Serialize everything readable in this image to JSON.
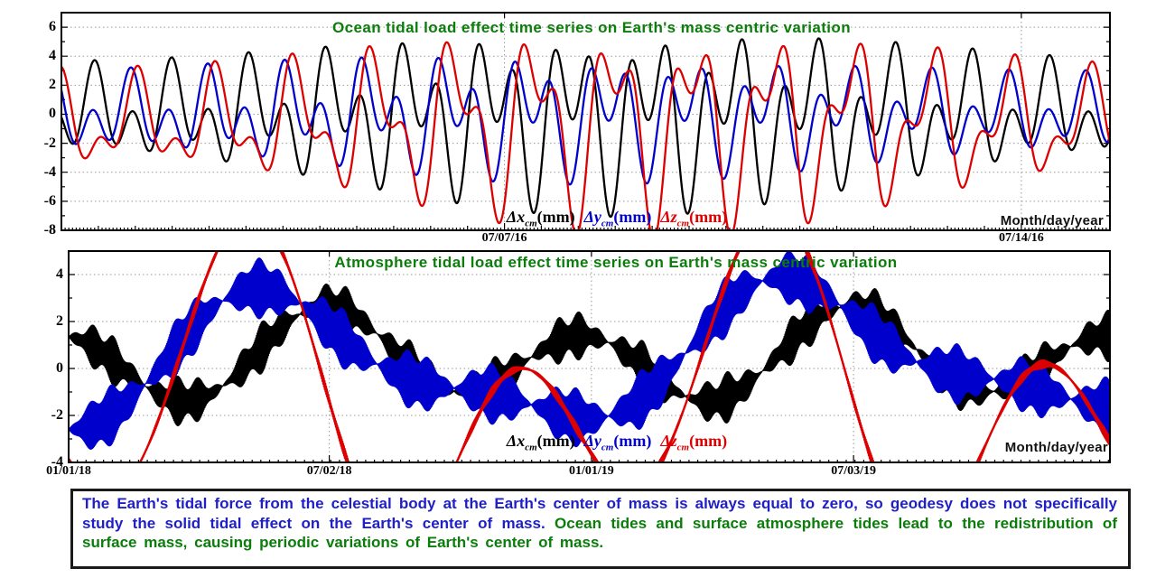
{
  "page": {
    "background": "#ffffff",
    "note_box": {
      "text_blue": "The Earth's tidal force from the celestial body at the Earth's center of mass is always equal to zero, so geodesy does not specifically study the solid tidal effect on the Earth's center of mass.",
      "text_green": "Ocean tides and surface atmosphere tides lead to the redistribution of surface mass, causing periodic variations of Earth's center of mass.",
      "blue": "#1f1fc8",
      "green": "#0a7d0a"
    }
  },
  "colors": {
    "title_green": "#0a7d0a",
    "axis_black": "#000000",
    "grid_gray": "#999999",
    "series_x": "#000000",
    "series_y": "#0000cc",
    "series_z": "#dd0000"
  },
  "chart_data": [
    {
      "type": "line",
      "id": "ocean",
      "title": "Ocean tidal load effect time series on Earth's mass centric variation",
      "title_color": "#0a7d0a",
      "xlabel_note": "Month/day/year",
      "x_unit": "days since 07/01/16",
      "xlim": [
        0,
        14.2
      ],
      "ylim": [
        -8,
        7
      ],
      "y_ticks": [
        6,
        4,
        2,
        0,
        -2,
        -4,
        -6,
        -8
      ],
      "y_minor_step": 1,
      "x_ticks": [
        {
          "label": "07/07/16",
          "day": 6
        },
        {
          "label": "07/14/16",
          "day": 13
        }
      ],
      "x_minor_step": 0.05,
      "x_mid_step": 0.5,
      "grid": "dotted",
      "sample_step": 0.01,
      "legend": [
        {
          "var": "Δx",
          "sub": "cm",
          "unit": "(mm)",
          "color": "#000000"
        },
        {
          "var": "Δy",
          "sub": "cm",
          "unit": "(mm)",
          "color": "#0000cc"
        },
        {
          "var": "Δz",
          "sub": "cm",
          "unit": "(mm)",
          "color": "#dd0000"
        }
      ],
      "series": [
        {
          "name": "dx_cm",
          "color": "#000000",
          "width": 2.3,
          "offset": 0,
          "envelope": {
            "base": 1.35,
            "amp": 0.42,
            "period": 14.77,
            "t0": 7.6
          },
          "components": [
            {
              "amp": 2.1,
              "period": 0.5175,
              "phase": 2.39
            },
            {
              "amp": 1.9,
              "period": 1.0758,
              "phase": -1.06
            }
          ]
        },
        {
          "name": "dy_cm",
          "color": "#0000cc",
          "width": 2.3,
          "offset": 0,
          "envelope": {
            "base": 1.2,
            "amp": 0.28,
            "period": 14.77,
            "t0": 6.8
          },
          "components": [
            {
              "amp": 1.8,
              "period": 0.5175,
              "phase": 2.72
            },
            {
              "amp": 1.5,
              "period": 1.0758,
              "phase": 2.36
            }
          ]
        },
        {
          "name": "dz_cm",
          "color": "#dd0000",
          "width": 2.3,
          "offset": -0.6,
          "envelope": {
            "base": 1.3,
            "amp": 0.45,
            "period": 14.77,
            "t0": 8.0
          },
          "components": [
            {
              "amp": 1.7,
              "period": 0.5175,
              "phase": 1.57
            },
            {
              "amp": 2.9,
              "period": 1.0758,
              "phase": 1.86
            }
          ]
        }
      ]
    },
    {
      "type": "line",
      "id": "atmosphere",
      "title": "Atmosphere tidal load effect time series on Earth's mass centric variation",
      "title_color": "#0a7d0a",
      "xlabel_note": "Month/day/year",
      "x_unit": "days since 01/01/18",
      "xlim": [
        0,
        727
      ],
      "ylim": [
        -4,
        5
      ],
      "y_ticks": [
        4,
        2,
        0,
        -2,
        -4
      ],
      "y_minor_step": 1,
      "x_ticks": [
        {
          "label": "01/01/18",
          "day": 0
        },
        {
          "label": "07/02/18",
          "day": 182
        },
        {
          "label": "01/01/19",
          "day": 365
        },
        {
          "label": "07/03/19",
          "day": 548
        }
      ],
      "x_minor_step": 6.1,
      "grid": "dotted",
      "sample_step": 0.26,
      "legend": [
        {
          "var": "Δx",
          "sub": "cm",
          "unit": "(mm)",
          "color": "#000000"
        },
        {
          "var": "Δy",
          "sub": "cm",
          "unit": "(mm)",
          "color": "#0000cc"
        },
        {
          "var": "Δz",
          "sub": "cm",
          "unit": "(mm)",
          "color": "#dd0000"
        }
      ],
      "series": [
        {
          "name": "dx_cm",
          "color": "#000000",
          "width": 1.1,
          "center": {
            "t0": 0,
            "a0": 0.42,
            "a1": -0.64,
            "b1": -0.15,
            "a2": 1.57,
            "b2": -0.26,
            "period": 365.25,
            "trend": 0
          },
          "band": {
            "base": 0.8,
            "amp": 0.3,
            "period": 14.77,
            "t0": 2
          },
          "carrier_period": 0.5175
        },
        {
          "name": "dy_cm",
          "color": "#0000cc",
          "width": 1.1,
          "center": {
            "t0": 0,
            "a0": -0.11,
            "a1": -2.05,
            "b1": 1.56,
            "a2": -0.44,
            "b2": -0.77,
            "period": 365.25,
            "trend": 0.0013
          },
          "band": {
            "base": 1.05,
            "amp": 0.25,
            "period": 14.77,
            "t0": 0
          },
          "carrier_period": 0.5175
        },
        {
          "name": "dz_cm",
          "color": "#dd0000",
          "width": 2.4,
          "center": {
            "t0": 103,
            "a0": -1.54,
            "a1": 3.52,
            "b1": 0.41,
            "a2": 2.87,
            "b2": 3.7,
            "period": 365.25,
            "trend": 0.0005
          },
          "band": {
            "base": 0.13,
            "amp": 0.05,
            "period": 14.77,
            "t0": 0
          },
          "carrier_period": 0.5175
        }
      ]
    }
  ]
}
